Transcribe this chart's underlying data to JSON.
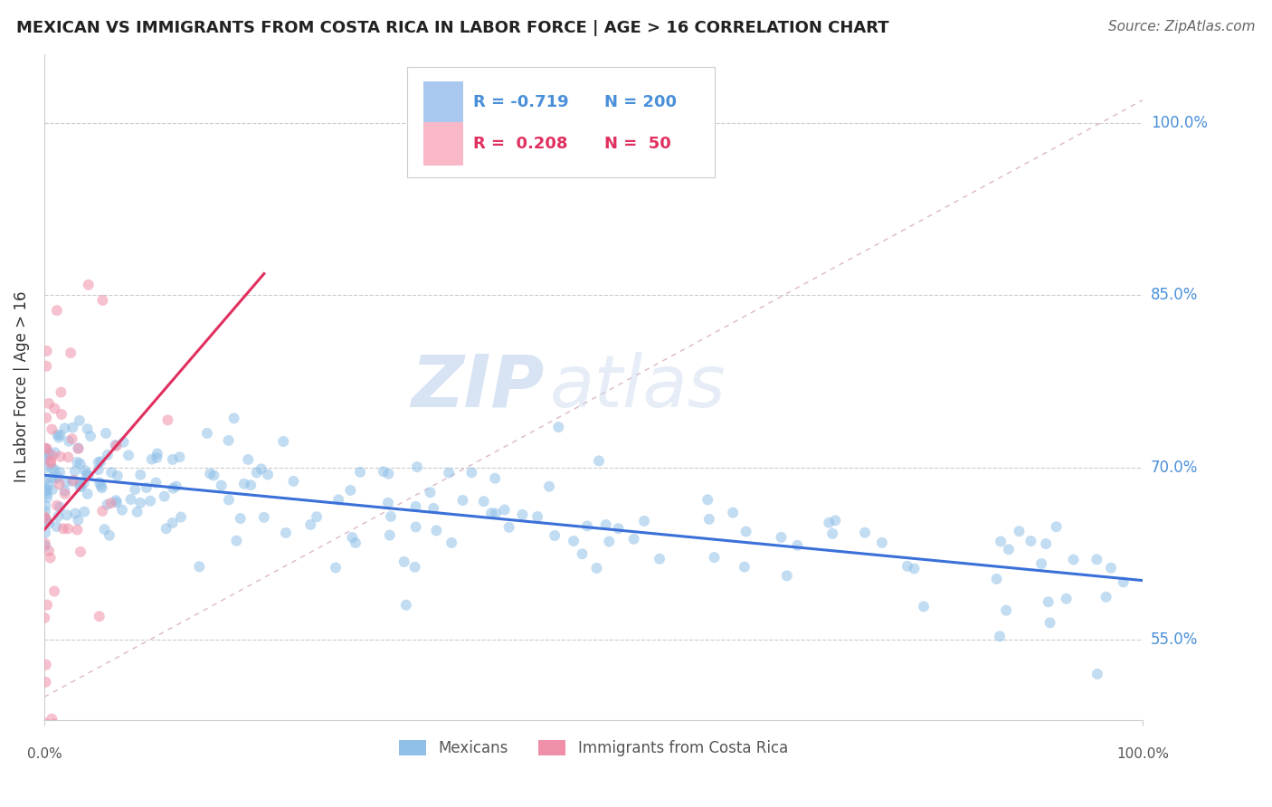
{
  "title": "MEXICAN VS IMMIGRANTS FROM COSTA RICA IN LABOR FORCE | AGE > 16 CORRELATION CHART",
  "source": "Source: ZipAtlas.com",
  "ylabel": "In Labor Force | Age > 16",
  "xlim": [
    0.0,
    1.0
  ],
  "ylim": [
    0.48,
    1.06
  ],
  "y_tick_labels": [
    "55.0%",
    "70.0%",
    "85.0%",
    "100.0%"
  ],
  "y_tick_positions": [
    0.55,
    0.7,
    0.85,
    1.0
  ],
  "r_mexican": -0.719,
  "n_mexican": 200,
  "r_costarica": 0.208,
  "n_costarica": 50,
  "mexican_color": "#90c0e8",
  "costarica_color": "#f090a8",
  "trendline_mexican_color": "#3a70d8",
  "trendline_costarica_color": "#e03060",
  "diagonal_color": "#d8b0c0",
  "watermark_zip": "ZIP",
  "watermark_atlas": "atlas",
  "background_color": "#ffffff",
  "legend_box_color": "#ffffff",
  "legend_border_color": "#cccccc",
  "tick_color": "#999999",
  "grid_color": "#cccccc",
  "spine_color": "#cccccc",
  "title_color": "#222222",
  "source_color": "#666666",
  "ylabel_color": "#333333",
  "right_label_color": "#4a90d9",
  "legend_blue_text": "#4a90d9",
  "legend_pink_text": "#e03060",
  "legend_blue_rect": "#a8c8f0",
  "legend_pink_rect": "#f8b8c8",
  "bottom_label_color": "#555555"
}
